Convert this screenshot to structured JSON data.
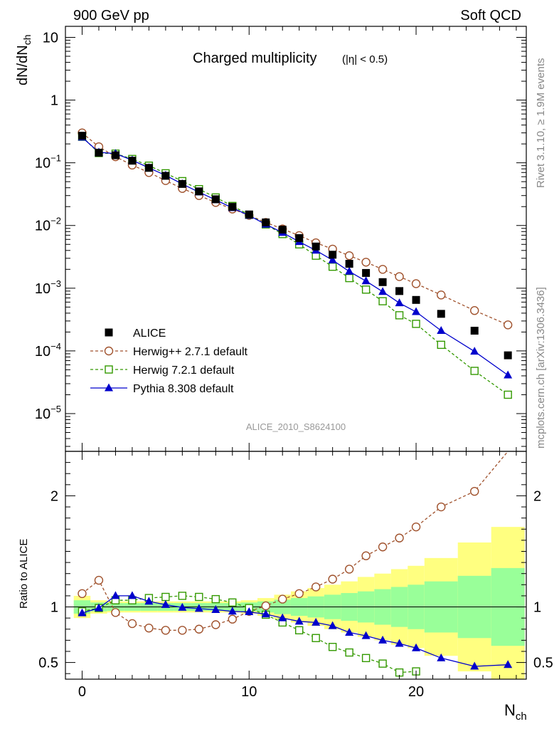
{
  "header": {
    "left": "900 GeV pp",
    "right": "Soft QCD"
  },
  "side_labels": {
    "rivet": "Rivet 3.1.10, ≥ 1.9M events",
    "mcplots": "mcplots.cern.ch [arXiv:1306.3436]"
  },
  "chart_data": [
    {
      "type": "scatter",
      "title": "Charged multiplicity",
      "title_suffix": "(|η| < 0.5)",
      "ylabel": "dN/dN_ch",
      "xlabel": "N_ch",
      "yscale": "log",
      "xlim": [
        -1,
        26.6
      ],
      "ylim": [
        2.5e-06,
        15
      ],
      "y_tick_labels": [
        "10^-5",
        "10^-4",
        "10^-3",
        "10^-2",
        "10^-1",
        "1",
        "10"
      ],
      "watermark": "ALICE_2010_S8624100",
      "legend_position": "bottom-left",
      "series": [
        {
          "name": "ALICE",
          "color": "#000000",
          "marker": "filled-square",
          "x": [
            0,
            1,
            2,
            3,
            4,
            5,
            6,
            7,
            8,
            9,
            10,
            11,
            12,
            13,
            14,
            15,
            16,
            17,
            18,
            19,
            20,
            21.5,
            23.5,
            25.5
          ],
          "y": [
            0.27,
            0.145,
            0.132,
            0.108,
            0.083,
            0.062,
            0.046,
            0.035,
            0.0262,
            0.0198,
            0.015,
            0.0112,
            0.0086,
            0.0063,
            0.00462,
            0.00342,
            0.00245,
            0.00175,
            0.00125,
            0.0009,
            0.00065,
            0.00039,
            0.00021,
            8.5e-05
          ]
        },
        {
          "name": "Herwig++ 2.7.1 default",
          "color": "#a0522d",
          "marker": "open-circle",
          "line": "dashed",
          "x": [
            0,
            1,
            2,
            3,
            4,
            5,
            6,
            7,
            8,
            9,
            10,
            11,
            12,
            13,
            14,
            15,
            16,
            17,
            18,
            19,
            20,
            21.5,
            23.5,
            25.5
          ],
          "y": [
            0.3,
            0.18,
            0.125,
            0.092,
            0.07,
            0.052,
            0.039,
            0.03,
            0.0233,
            0.0183,
            0.0145,
            0.0112,
            0.0088,
            0.0069,
            0.0053,
            0.0042,
            0.0033,
            0.0026,
            0.002,
            0.00153,
            0.00118,
            0.00078,
            0.00044,
            0.00026
          ]
        },
        {
          "name": "Herwig 7.2.1 default",
          "color": "#339900",
          "marker": "open-square",
          "line": "dashed",
          "x": [
            0,
            1,
            2,
            3,
            4,
            5,
            6,
            7,
            8,
            9,
            10,
            11,
            12,
            13,
            14,
            15,
            16,
            17,
            18,
            19,
            20,
            21.5,
            23.5,
            25.5
          ],
          "y": [
            0.26,
            0.143,
            0.14,
            0.115,
            0.09,
            0.068,
            0.051,
            0.038,
            0.028,
            0.0205,
            0.0148,
            0.0104,
            0.0073,
            0.005,
            0.0033,
            0.0022,
            0.00145,
            0.00095,
            0.00062,
            0.00037,
            0.00027,
            0.000125,
            4.8e-05,
            2e-05
          ]
        },
        {
          "name": "Pythia 8.308 default",
          "color": "#0000cc",
          "marker": "filled-triangle",
          "line": "solid",
          "x": [
            0,
            1,
            2,
            3,
            4,
            5,
            6,
            7,
            8,
            9,
            10,
            11,
            12,
            13,
            14,
            15,
            16,
            17,
            18,
            19,
            20,
            21.5,
            23.5,
            25.5
          ],
          "y": [
            0.255,
            0.147,
            0.14,
            0.11,
            0.083,
            0.063,
            0.046,
            0.034,
            0.0256,
            0.0191,
            0.0144,
            0.0104,
            0.0077,
            0.0055,
            0.004,
            0.0028,
            0.00185,
            0.0013,
            0.00088,
            0.00058,
            0.00042,
            0.00021,
            9.8e-05,
            4.1e-05
          ]
        }
      ]
    },
    {
      "type": "line",
      "ylabel": "Ratio to ALICE",
      "xlabel": "N_ch",
      "xlim": [
        -1,
        26.6
      ],
      "ylim": [
        0.35,
        2.4
      ],
      "y_ticks": [
        0.5,
        1,
        2
      ],
      "x_ticks": [
        0,
        10,
        20
      ],
      "bands": {
        "edges": [
          -0.5,
          0.5,
          1.5,
          2.5,
          3.5,
          4.5,
          5.5,
          6.5,
          7.5,
          8.5,
          9.5,
          10.5,
          11.5,
          12.5,
          13.5,
          14.5,
          15.5,
          16.5,
          17.5,
          18.5,
          19.5,
          20.5,
          22.5,
          24.5,
          26.5
        ],
        "stat_half_width": [
          0.06,
          0.04,
          0.035,
          0.035,
          0.035,
          0.035,
          0.035,
          0.035,
          0.035,
          0.035,
          0.04,
          0.05,
          0.065,
          0.08,
          0.095,
          0.11,
          0.125,
          0.14,
          0.16,
          0.18,
          0.2,
          0.23,
          0.28,
          0.35
        ],
        "syst_half_width": [
          0.1,
          0.06,
          0.05,
          0.05,
          0.05,
          0.05,
          0.05,
          0.05,
          0.05,
          0.05,
          0.06,
          0.08,
          0.11,
          0.14,
          0.17,
          0.2,
          0.23,
          0.27,
          0.3,
          0.34,
          0.37,
          0.44,
          0.58,
          0.72
        ],
        "stat_color": "#99ff99",
        "syst_color": "#ffff80"
      },
      "series": [
        {
          "name": "Herwig++ 2.7.1 default",
          "color": "#a0522d",
          "marker": "open-circle",
          "line": "dashed",
          "x": [
            0,
            1,
            2,
            3,
            4,
            5,
            6,
            7,
            8,
            9,
            10,
            11,
            12,
            13,
            14,
            15,
            16,
            17,
            18,
            19,
            20,
            21.5,
            23.5,
            25.5
          ],
          "y": [
            1.12,
            1.24,
            0.95,
            0.85,
            0.81,
            0.79,
            0.79,
            0.8,
            0.84,
            0.89,
            0.96,
            1.01,
            1.07,
            1.12,
            1.18,
            1.25,
            1.34,
            1.46,
            1.54,
            1.62,
            1.72,
            1.9,
            2.04,
            2.5
          ]
        },
        {
          "name": "Herwig 7.2.1 default",
          "color": "#339900",
          "marker": "open-square",
          "line": "dashed",
          "x": [
            0,
            1,
            2,
            3,
            4,
            5,
            6,
            7,
            8,
            9,
            10,
            11,
            12,
            13,
            14,
            15,
            16,
            17,
            18,
            19,
            20
          ],
          "y": [
            0.96,
            0.99,
            1.06,
            1.06,
            1.08,
            1.09,
            1.1,
            1.09,
            1.07,
            1.04,
            0.99,
            0.93,
            0.86,
            0.79,
            0.72,
            0.64,
            0.59,
            0.54,
            0.49,
            0.41,
            0.42
          ]
        },
        {
          "name": "Pythia 8.308 default",
          "color": "#0000cc",
          "marker": "filled-triangle",
          "line": "solid",
          "x": [
            0,
            1,
            2,
            3,
            4,
            5,
            6,
            7,
            8,
            9,
            10,
            11,
            12,
            13,
            14,
            15,
            16,
            17,
            18,
            19,
            20,
            21.5,
            23.5,
            25.5
          ],
          "y": [
            0.945,
            0.99,
            1.1,
            1.1,
            1.05,
            1.02,
            0.995,
            0.985,
            0.975,
            0.96,
            0.955,
            0.935,
            0.9,
            0.87,
            0.86,
            0.83,
            0.77,
            0.74,
            0.7,
            0.67,
            0.63,
            0.54,
            0.465,
            0.48
          ]
        }
      ]
    }
  ]
}
